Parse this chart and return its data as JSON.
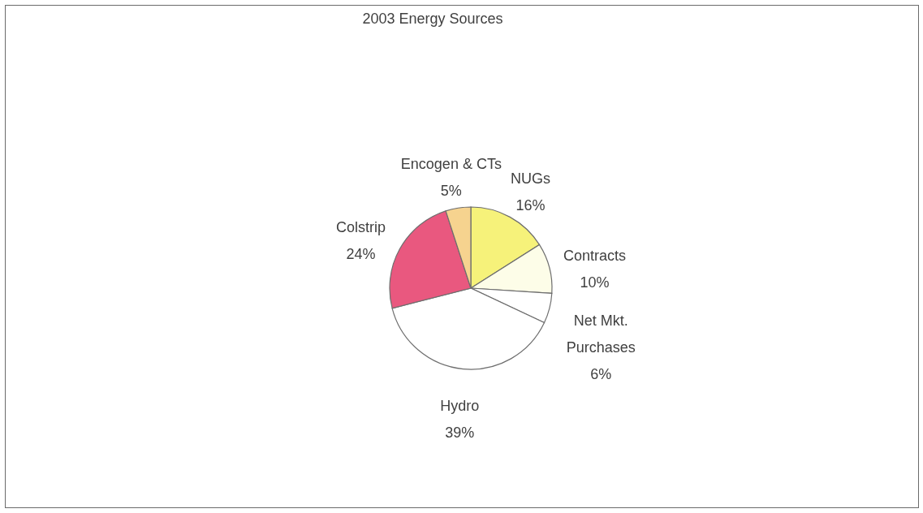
{
  "chart_data": {
    "type": "pie",
    "title": "2003 Energy Sources",
    "categories": [
      "NUGs",
      "Contracts",
      "Net Mkt. Purchases",
      "Hydro",
      "Colstrip",
      "Encogen & CTs"
    ],
    "values": [
      16,
      10,
      6,
      39,
      24,
      5
    ],
    "value_labels": [
      "16%",
      "10%",
      "6%",
      "39%",
      "24%",
      "5%"
    ],
    "colors": [
      "#f6f27a",
      "#fdfde8",
      "#ffffff",
      "#ffffff",
      "#e9587f",
      "#f6d38f"
    ]
  }
}
